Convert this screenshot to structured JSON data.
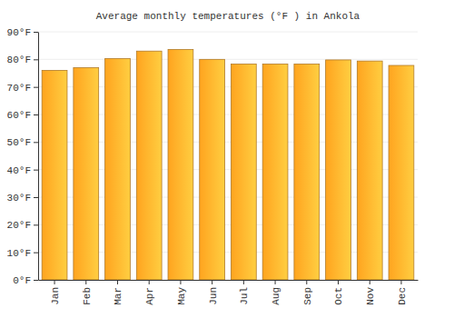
{
  "chart_data": {
    "type": "bar",
    "title": "Average monthly temperatures (°F ) in Ankola",
    "categories": [
      "Jan",
      "Feb",
      "Mar",
      "Apr",
      "May",
      "Jun",
      "Jul",
      "Aug",
      "Sep",
      "Oct",
      "Nov",
      "Dec"
    ],
    "values": [
      76,
      77,
      80.3,
      83,
      83.6,
      80,
      78.3,
      78.3,
      78.3,
      79.8,
      79.4,
      77.8
    ],
    "color": "#ffa41f",
    "ylim": [
      0,
      90
    ],
    "yticks": [
      {
        "value": 0,
        "label": "0°F"
      },
      {
        "value": 10,
        "label": "10°F"
      },
      {
        "value": 20,
        "label": "20°F"
      },
      {
        "value": 30,
        "label": "30°F"
      },
      {
        "value": 40,
        "label": "40°F"
      },
      {
        "value": 50,
        "label": "50°F"
      },
      {
        "value": 60,
        "label": "60°F"
      },
      {
        "value": 70,
        "label": "70°F"
      },
      {
        "value": 80,
        "label": "80°F"
      },
      {
        "value": 90,
        "label": "90°F"
      }
    ],
    "grid": true
  }
}
